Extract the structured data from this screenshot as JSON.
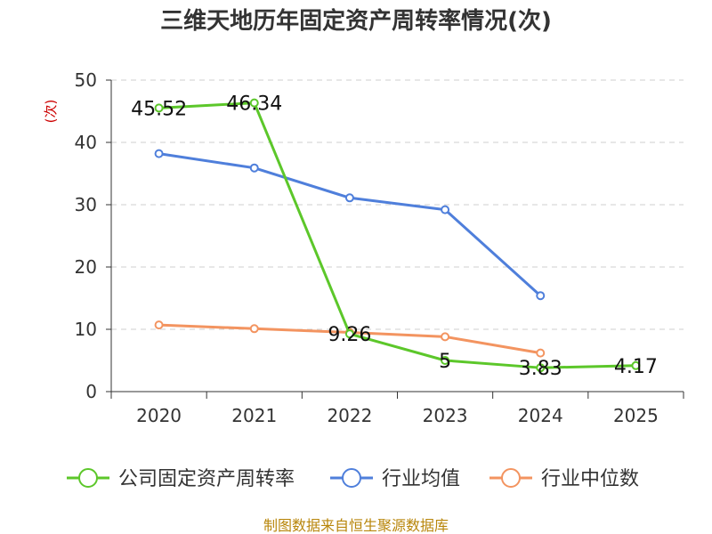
{
  "chart_data": {
    "type": "line",
    "title": "三维天地历年固定资产周转率情况(次)",
    "ylabel": "(次)",
    "xlabel": "",
    "categories": [
      "2020",
      "2021",
      "2022",
      "2023",
      "2024",
      "2025"
    ],
    "ylim": [
      0,
      50
    ],
    "yticks": [
      0,
      10,
      20,
      30,
      40,
      50
    ],
    "grid": true,
    "legend_position": "bottom",
    "series": [
      {
        "name": "公司固定资产周转率",
        "color": "#5cc72a",
        "values": [
          45.52,
          46.34,
          9.26,
          5,
          3.83,
          4.17
        ],
        "labels": [
          "45.52",
          "46.34",
          "9.26",
          "5",
          "3.83",
          "4.17"
        ]
      },
      {
        "name": "行业均值",
        "color": "#4f7fdb",
        "values": [
          38.2,
          35.9,
          31.1,
          29.2,
          15.4,
          null
        ]
      },
      {
        "name": "行业中位数",
        "color": "#f39460",
        "values": [
          10.7,
          10.1,
          9.5,
          8.8,
          6.2,
          null
        ]
      }
    ],
    "source": "制图数据来自恒生聚源数据库"
  }
}
